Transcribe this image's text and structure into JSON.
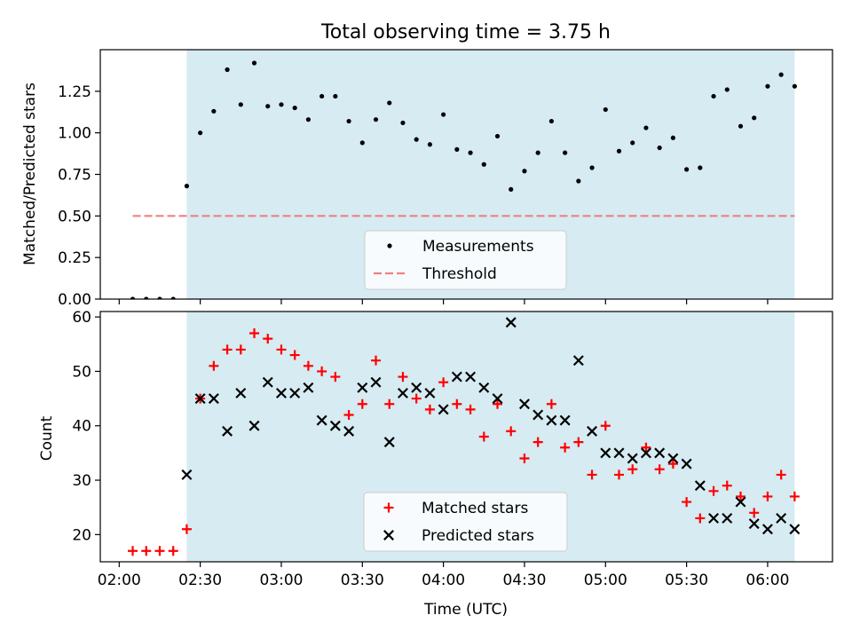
{
  "chart_data": [
    {
      "type": "scatter",
      "title": "Total observing time = 3.75 h",
      "xlabel": "",
      "ylabel": "Matched/Predicted stars",
      "xlim": [
        "01:53",
        "06:24"
      ],
      "ylim": [
        0,
        1.5
      ],
      "yticks": [
        "0.00",
        "0.25",
        "0.50",
        "0.75",
        "1.00",
        "1.25"
      ],
      "grid": false,
      "legend_position": "lower center",
      "observing_window": {
        "start": "02:25",
        "end": "06:10",
        "color": "#add8e6"
      },
      "series": [
        {
          "name": "Measurements",
          "color": "#000000",
          "marker": "dot",
          "points": [
            [
              "02:05",
              0.0
            ],
            [
              "02:10",
              0.0
            ],
            [
              "02:15",
              0.0
            ],
            [
              "02:20",
              0.0
            ],
            [
              "02:25",
              0.68
            ],
            [
              "02:30",
              1.0
            ],
            [
              "02:35",
              1.13
            ],
            [
              "02:40",
              1.38
            ],
            [
              "02:45",
              1.17
            ],
            [
              "02:50",
              1.42
            ],
            [
              "02:55",
              1.16
            ],
            [
              "03:00",
              1.17
            ],
            [
              "03:05",
              1.15
            ],
            [
              "03:10",
              1.08
            ],
            [
              "03:15",
              1.22
            ],
            [
              "03:20",
              1.22
            ],
            [
              "03:25",
              1.07
            ],
            [
              "03:30",
              0.94
            ],
            [
              "03:35",
              1.08
            ],
            [
              "03:40",
              1.18
            ],
            [
              "03:45",
              1.06
            ],
            [
              "03:50",
              0.96
            ],
            [
              "03:55",
              0.93
            ],
            [
              "04:00",
              1.11
            ],
            [
              "04:05",
              0.9
            ],
            [
              "04:10",
              0.88
            ],
            [
              "04:15",
              0.81
            ],
            [
              "04:20",
              0.98
            ],
            [
              "04:25",
              0.66
            ],
            [
              "04:30",
              0.77
            ],
            [
              "04:35",
              0.88
            ],
            [
              "04:40",
              1.07
            ],
            [
              "04:45",
              0.88
            ],
            [
              "04:50",
              0.71
            ],
            [
              "04:55",
              0.79
            ],
            [
              "05:00",
              1.14
            ],
            [
              "05:05",
              0.89
            ],
            [
              "05:10",
              0.94
            ],
            [
              "05:15",
              1.03
            ],
            [
              "05:20",
              0.91
            ],
            [
              "05:25",
              0.97
            ],
            [
              "05:30",
              0.78
            ],
            [
              "05:35",
              0.79
            ],
            [
              "05:40",
              1.22
            ],
            [
              "05:45",
              1.26
            ],
            [
              "05:50",
              1.04
            ],
            [
              "05:55",
              1.09
            ],
            [
              "06:00",
              1.28
            ],
            [
              "06:05",
              1.35
            ],
            [
              "06:10",
              1.28
            ]
          ]
        },
        {
          "name": "Threshold",
          "color": "#f08080",
          "marker": "dashed-line",
          "points": [
            [
              "02:05",
              0.5
            ],
            [
              "06:10",
              0.5
            ]
          ]
        }
      ]
    },
    {
      "type": "scatter",
      "title": "",
      "xlabel": "Time (UTC)",
      "ylabel": "Count",
      "xlim": [
        "01:53",
        "06:24"
      ],
      "ylim": [
        15,
        61
      ],
      "yticks": [
        "20",
        "30",
        "40",
        "50",
        "60"
      ],
      "xticks": [
        "02:00",
        "02:30",
        "03:00",
        "03:30",
        "04:00",
        "04:30",
        "05:00",
        "05:30",
        "06:00"
      ],
      "grid": false,
      "legend_position": "lower center",
      "observing_window": {
        "start": "02:25",
        "end": "06:10",
        "color": "#add8e6"
      },
      "series": [
        {
          "name": "Matched stars",
          "color": "#ff0000",
          "marker": "plus",
          "points": [
            [
              "02:05",
              17
            ],
            [
              "02:10",
              17
            ],
            [
              "02:15",
              17
            ],
            [
              "02:20",
              17
            ],
            [
              "02:25",
              21
            ],
            [
              "02:30",
              45
            ],
            [
              "02:35",
              51
            ],
            [
              "02:40",
              54
            ],
            [
              "02:45",
              54
            ],
            [
              "02:50",
              57
            ],
            [
              "02:55",
              56
            ],
            [
              "03:00",
              54
            ],
            [
              "03:05",
              53
            ],
            [
              "03:10",
              51
            ],
            [
              "03:15",
              50
            ],
            [
              "03:20",
              49
            ],
            [
              "03:25",
              42
            ],
            [
              "03:30",
              44
            ],
            [
              "03:35",
              52
            ],
            [
              "03:40",
              44
            ],
            [
              "03:45",
              49
            ],
            [
              "03:50",
              45
            ],
            [
              "03:55",
              43
            ],
            [
              "04:00",
              48
            ],
            [
              "04:05",
              44
            ],
            [
              "04:10",
              43
            ],
            [
              "04:15",
              38
            ],
            [
              "04:20",
              44
            ],
            [
              "04:25",
              39
            ],
            [
              "04:30",
              34
            ],
            [
              "04:35",
              37
            ],
            [
              "04:40",
              44
            ],
            [
              "04:45",
              36
            ],
            [
              "04:50",
              37
            ],
            [
              "04:55",
              31
            ],
            [
              "05:00",
              40
            ],
            [
              "05:05",
              31
            ],
            [
              "05:10",
              32
            ],
            [
              "05:15",
              36
            ],
            [
              "05:20",
              32
            ],
            [
              "05:25",
              33
            ],
            [
              "05:30",
              26
            ],
            [
              "05:35",
              23
            ],
            [
              "05:40",
              28
            ],
            [
              "05:45",
              29
            ],
            [
              "05:50",
              27
            ],
            [
              "05:55",
              24
            ],
            [
              "06:00",
              27
            ],
            [
              "06:05",
              31
            ],
            [
              "06:10",
              27
            ]
          ]
        },
        {
          "name": "Predicted stars",
          "color": "#000000",
          "marker": "x",
          "points": [
            [
              "02:25",
              31
            ],
            [
              "02:30",
              45
            ],
            [
              "02:35",
              45
            ],
            [
              "02:40",
              39
            ],
            [
              "02:45",
              46
            ],
            [
              "02:50",
              40
            ],
            [
              "02:55",
              48
            ],
            [
              "03:00",
              46
            ],
            [
              "03:05",
              46
            ],
            [
              "03:10",
              47
            ],
            [
              "03:15",
              41
            ],
            [
              "03:20",
              40
            ],
            [
              "03:25",
              39
            ],
            [
              "03:30",
              47
            ],
            [
              "03:35",
              48
            ],
            [
              "03:40",
              37
            ],
            [
              "03:45",
              46
            ],
            [
              "03:50",
              47
            ],
            [
              "03:55",
              46
            ],
            [
              "04:00",
              43
            ],
            [
              "04:05",
              49
            ],
            [
              "04:10",
              49
            ],
            [
              "04:15",
              47
            ],
            [
              "04:20",
              45
            ],
            [
              "04:25",
              59
            ],
            [
              "04:30",
              44
            ],
            [
              "04:35",
              42
            ],
            [
              "04:40",
              41
            ],
            [
              "04:45",
              41
            ],
            [
              "04:50",
              52
            ],
            [
              "04:55",
              39
            ],
            [
              "05:00",
              35
            ],
            [
              "05:05",
              35
            ],
            [
              "05:10",
              34
            ],
            [
              "05:15",
              35
            ],
            [
              "05:20",
              35
            ],
            [
              "05:25",
              34
            ],
            [
              "05:30",
              33
            ],
            [
              "05:35",
              29
            ],
            [
              "05:40",
              23
            ],
            [
              "05:45",
              23
            ],
            [
              "05:50",
              26
            ],
            [
              "05:55",
              22
            ],
            [
              "06:00",
              21
            ],
            [
              "06:05",
              23
            ],
            [
              "06:10",
              21
            ]
          ]
        }
      ]
    }
  ]
}
